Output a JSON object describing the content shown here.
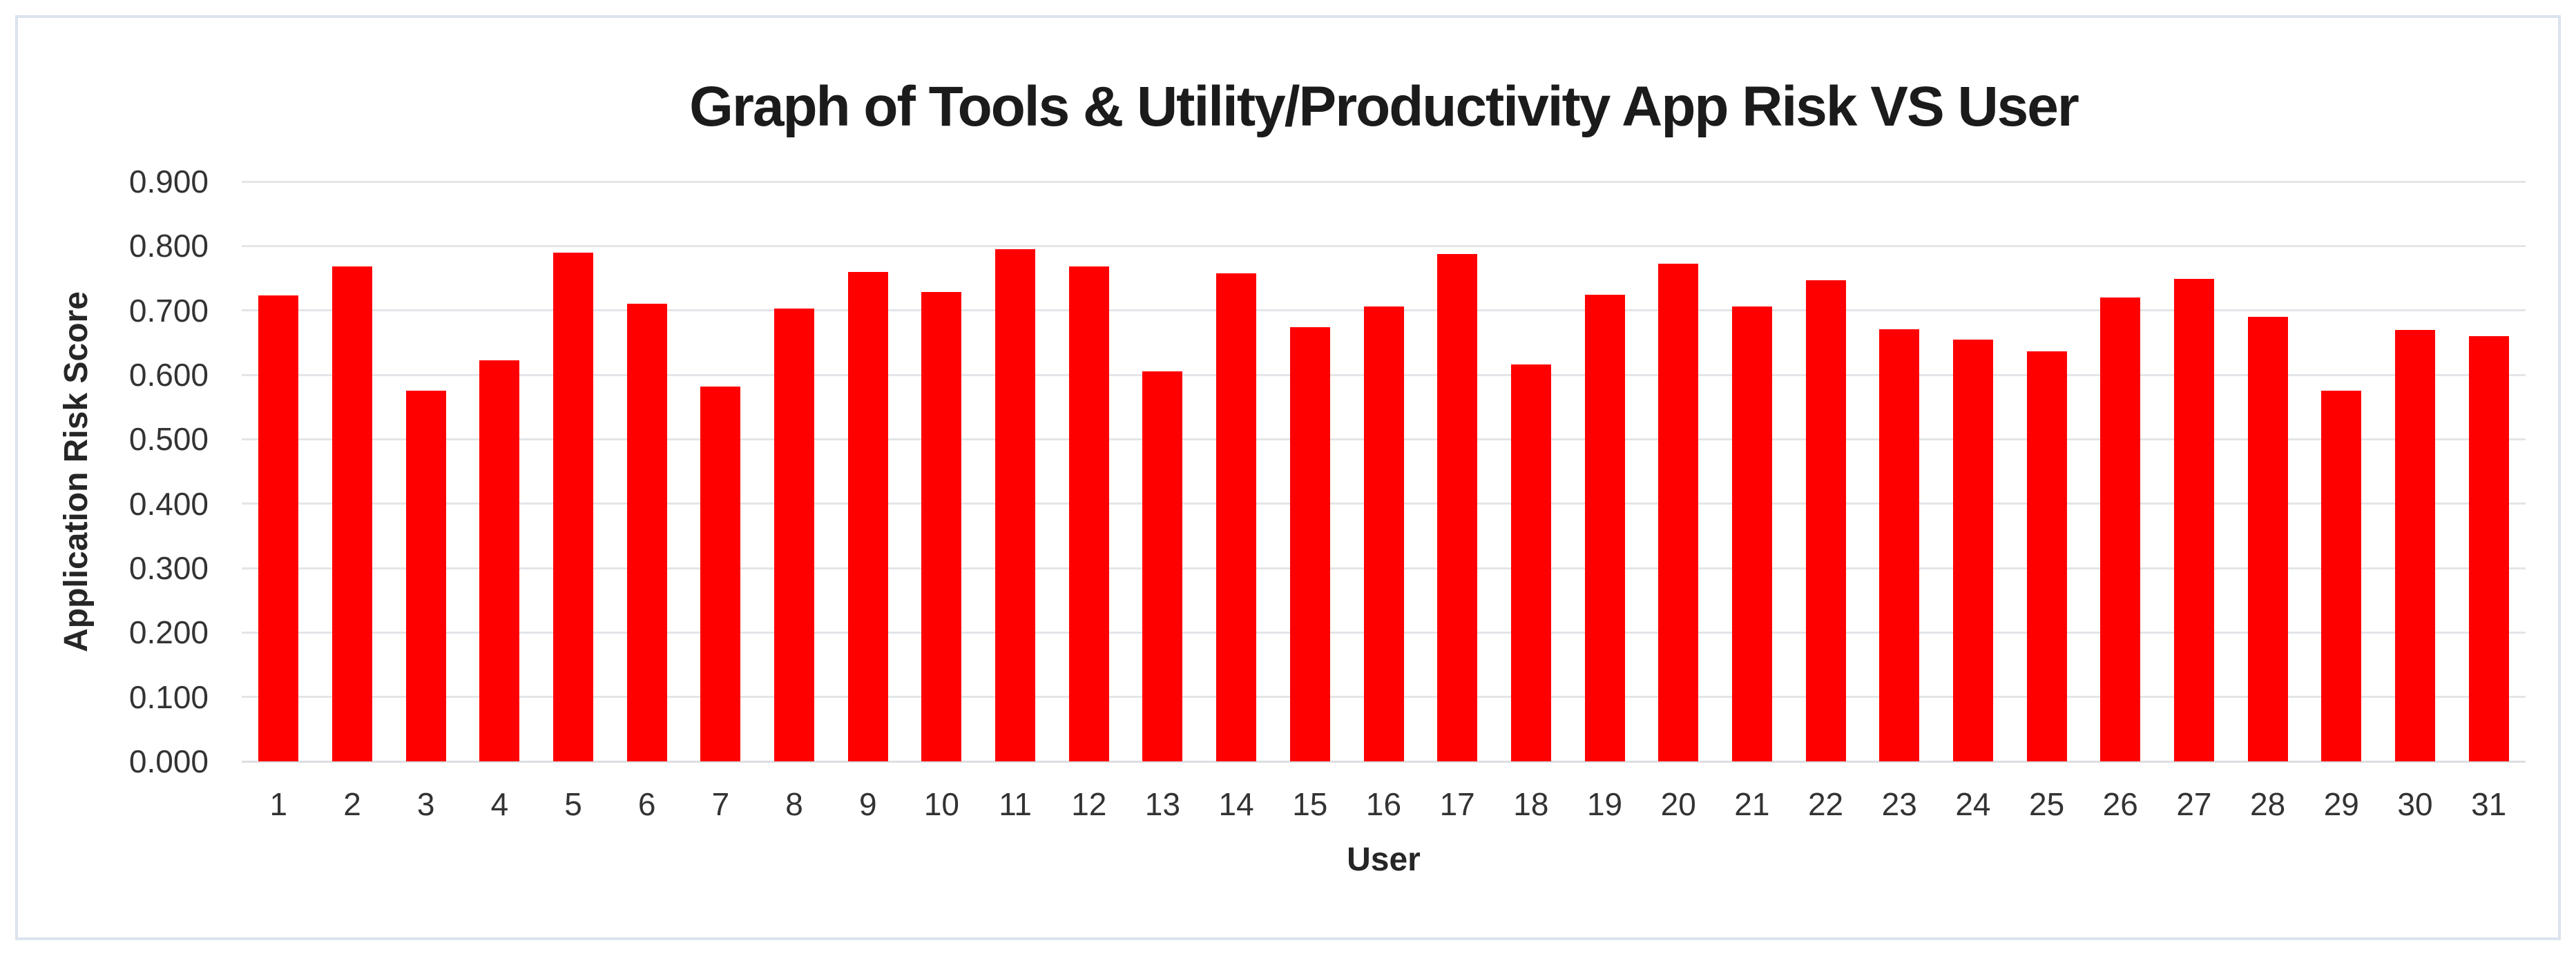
{
  "chart_data": {
    "type": "bar",
    "title": "Graph of Tools & Utility/Productivity App Risk VS User",
    "xlabel": "User",
    "ylabel": "Application Risk Score",
    "categories": [
      "1",
      "2",
      "3",
      "4",
      "5",
      "6",
      "7",
      "8",
      "9",
      "10",
      "11",
      "12",
      "13",
      "14",
      "15",
      "16",
      "17",
      "18",
      "19",
      "20",
      "21",
      "22",
      "23",
      "24",
      "25",
      "26",
      "27",
      "28",
      "29",
      "30",
      "31"
    ],
    "values": [
      0.723,
      0.768,
      0.575,
      0.622,
      0.79,
      0.71,
      0.582,
      0.703,
      0.76,
      0.729,
      0.795,
      0.768,
      0.605,
      0.758,
      0.674,
      0.706,
      0.787,
      0.616,
      0.724,
      0.773,
      0.706,
      0.747,
      0.671,
      0.655,
      0.636,
      0.72,
      0.749,
      0.69,
      0.575,
      0.67,
      0.66
    ],
    "ylim": [
      0.0,
      0.9
    ],
    "ytick_labels": [
      "0.000",
      "0.100",
      "0.200",
      "0.300",
      "0.400",
      "0.500",
      "0.600",
      "0.700",
      "0.800",
      "0.900"
    ],
    "grid": true,
    "legend": "none",
    "bar_color": "#ff0000",
    "gridline_color": "#e3e5e8",
    "frame_border_color": "#dbe3ee"
  }
}
